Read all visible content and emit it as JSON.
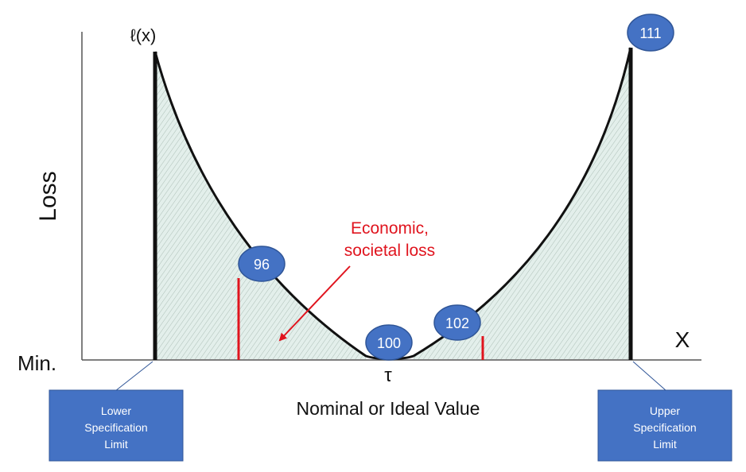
{
  "labels": {
    "loss_func": "ℓ(x)",
    "y_axis": "Loss",
    "x_axis": "X",
    "min": "Min.",
    "tau": "τ",
    "nominal": "Nominal or Ideal Value",
    "economic_line1": "Economic,",
    "economic_line2": "societal loss"
  },
  "markers": {
    "m96": "96",
    "m100": "100",
    "m102": "102",
    "m111": "111"
  },
  "boxes": {
    "lower": [
      "Lower",
      "Specification",
      "Limit"
    ],
    "upper": [
      "Upper",
      "Specification",
      "Limit"
    ]
  },
  "colors": {
    "marker_fill": "#4472c4",
    "marker_stroke": "#2f5597",
    "box_fill": "#4472c4",
    "accent_red": "#e0141e",
    "hatch_fill": "#dfeee9"
  }
}
